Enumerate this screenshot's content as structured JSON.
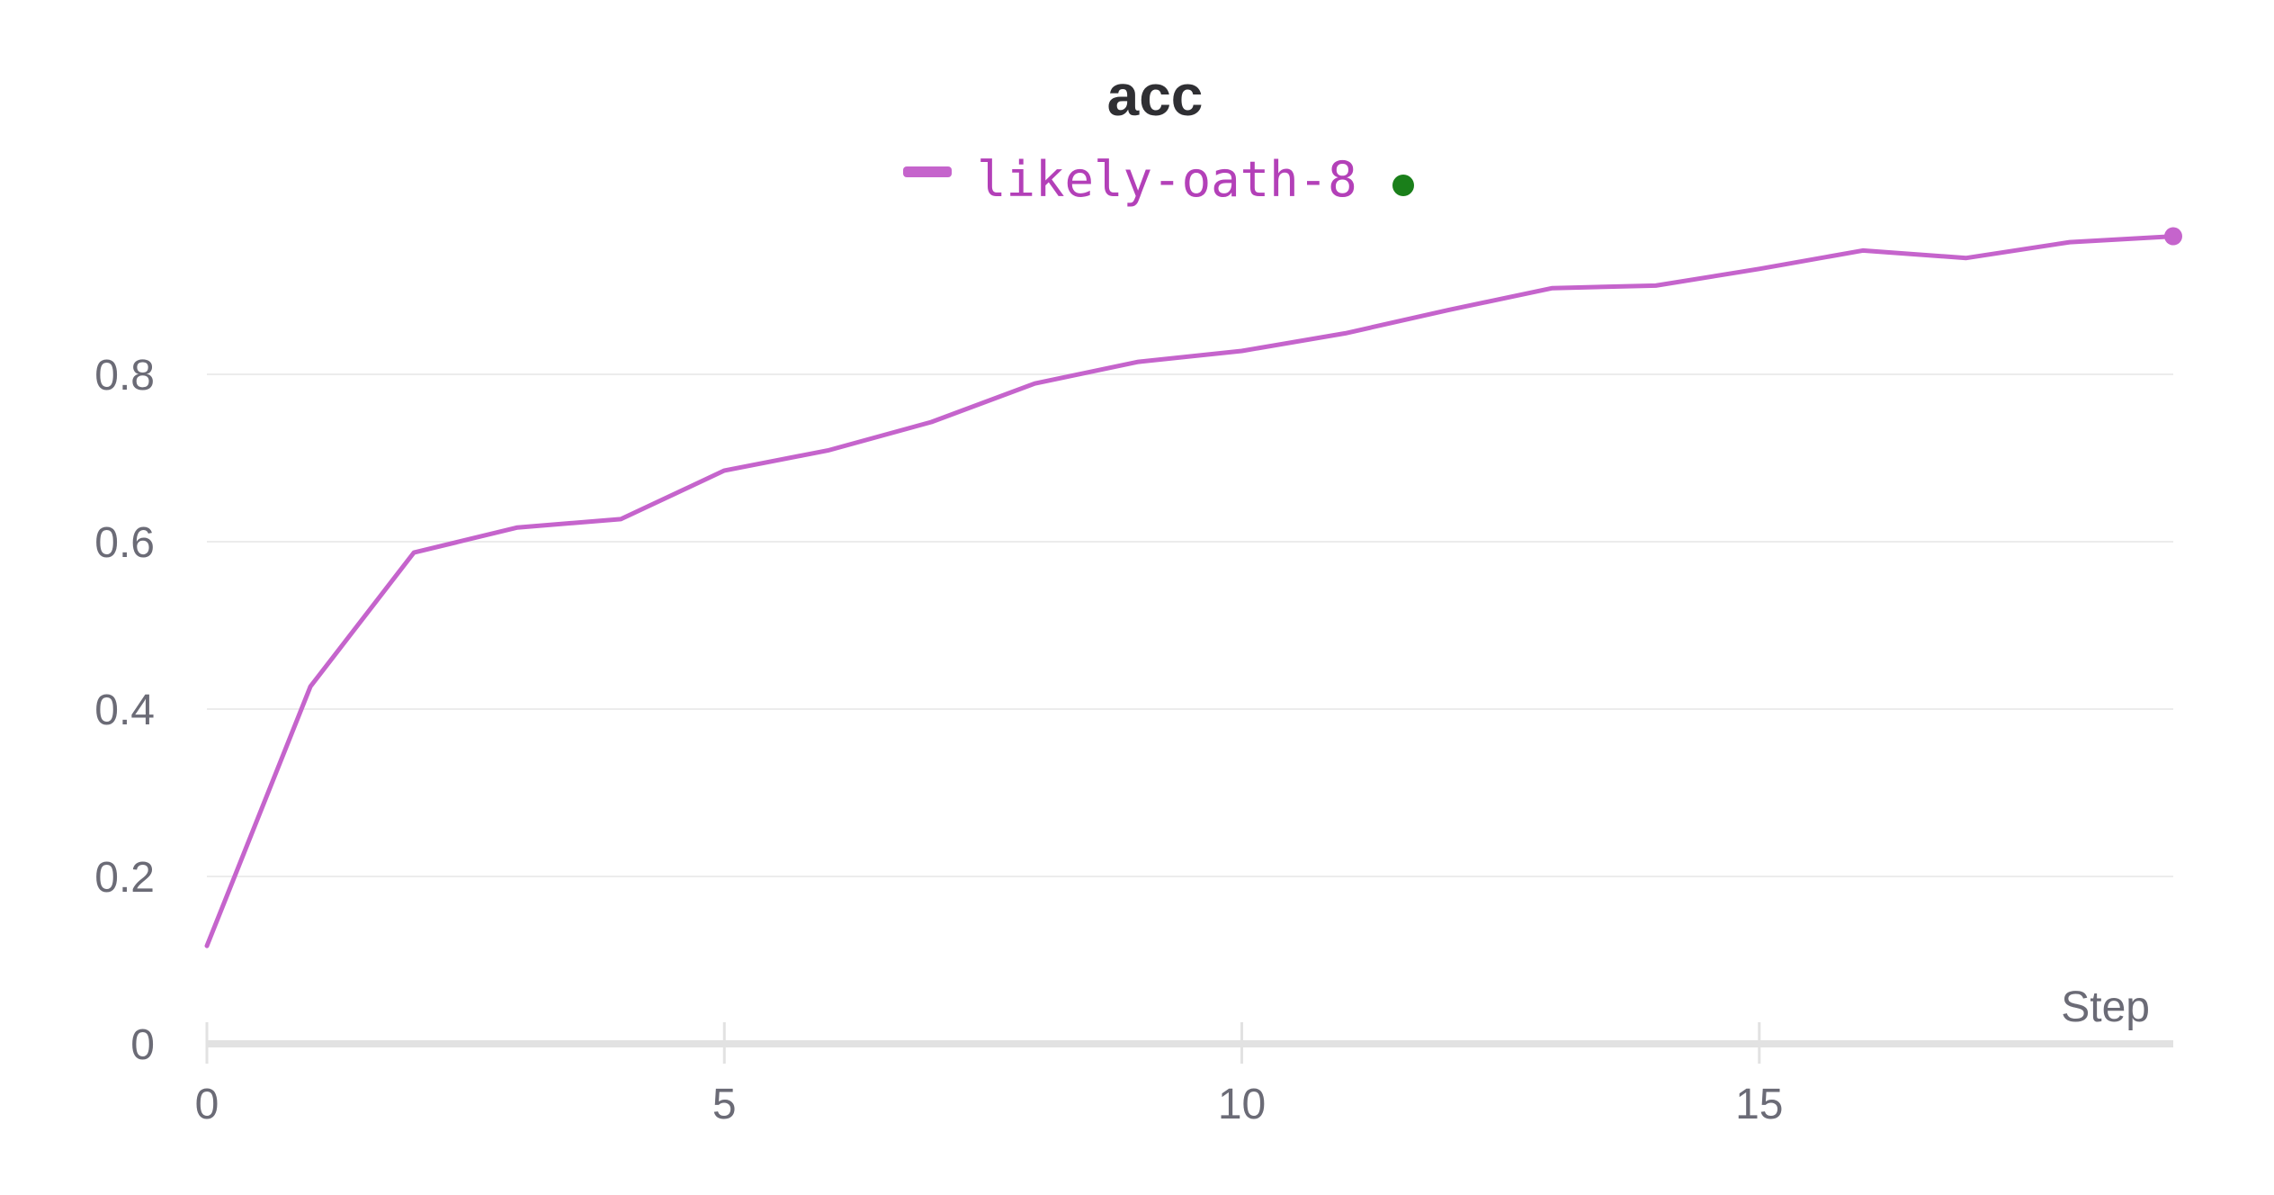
{
  "chart_data": {
    "type": "line",
    "title": "acc",
    "xlabel": "Step",
    "ylabel": "",
    "x_ticks": [
      "0",
      "5",
      "10",
      "15"
    ],
    "y_ticks": [
      "0",
      "0.2",
      "0.4",
      "0.6",
      "0.8"
    ],
    "xlim": [
      0,
      19
    ],
    "ylim": [
      0,
      1.0
    ],
    "grid": true,
    "legend_position": "top-center",
    "series": [
      {
        "name": "likely-oath-8",
        "color": "#c564cc",
        "status_color": "#1a7f1a",
        "x": [
          0,
          1,
          2,
          3,
          4,
          5,
          6,
          7,
          8,
          9,
          10,
          11,
          12,
          13,
          14,
          15,
          16,
          17,
          18,
          19
        ],
        "y": [
          0.117,
          0.427,
          0.587,
          0.617,
          0.627,
          0.685,
          0.709,
          0.743,
          0.789,
          0.815,
          0.828,
          0.849,
          0.877,
          0.903,
          0.906,
          0.926,
          0.948,
          0.939,
          0.958,
          0.965
        ]
      }
    ]
  }
}
